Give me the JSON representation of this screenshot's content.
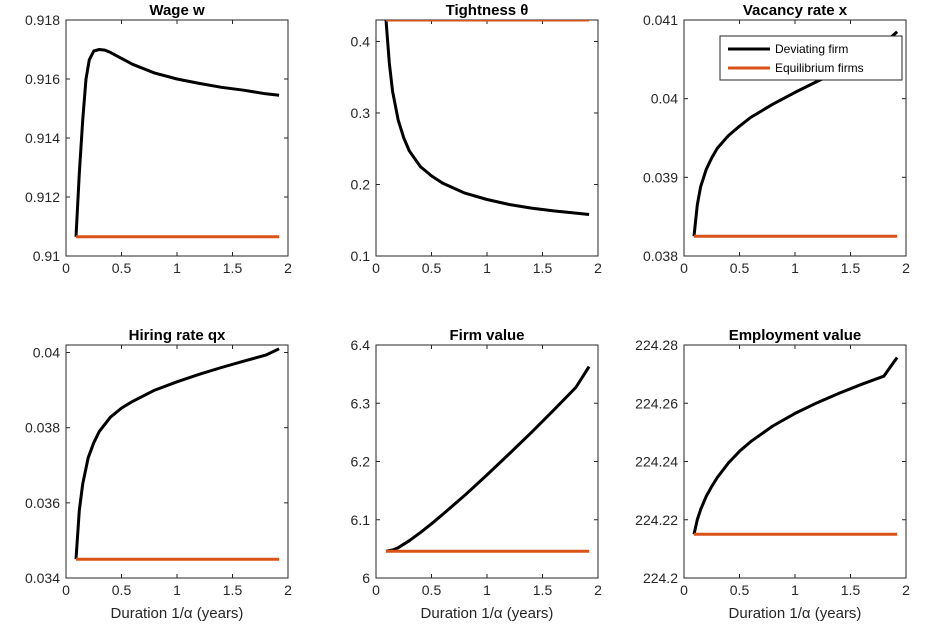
{
  "colors": {
    "deviating": "#000000",
    "equilibrium": "#D95319"
  },
  "legend": [
    "Deviating firm",
    "Equilibrium firms"
  ],
  "xlabel": "Duration 1/α (years)",
  "chart_data": [
    {
      "type": "line",
      "title": "Wage w",
      "xlabel": "",
      "xlim": [
        0,
        2
      ],
      "ylim": [
        0.91,
        0.918
      ],
      "xticks": [
        "0",
        "0.5",
        "1",
        "1.5",
        "2"
      ],
      "yticks": [
        "0.91",
        "0.912",
        "0.914",
        "0.916",
        "0.918"
      ],
      "series": [
        {
          "name": "Deviating firm",
          "color": "#000000",
          "x": [
            0.09,
            0.12,
            0.15,
            0.18,
            0.21,
            0.25,
            0.3,
            0.35,
            0.4,
            0.5,
            0.6,
            0.8,
            1.0,
            1.2,
            1.4,
            1.6,
            1.8,
            1.92
          ],
          "y": [
            0.91065,
            0.9128,
            0.9146,
            0.916,
            0.91665,
            0.91695,
            0.917,
            0.91698,
            0.9169,
            0.9167,
            0.9165,
            0.9162,
            0.916,
            0.91585,
            0.91572,
            0.91562,
            0.9155,
            0.91545
          ]
        },
        {
          "name": "Equilibrium firms",
          "color": "#D95319",
          "x": [
            0.09,
            1.92
          ],
          "y": [
            0.91065,
            0.91065
          ]
        }
      ]
    },
    {
      "type": "line",
      "title": "Tightness θ",
      "xlabel": "",
      "xlim": [
        0,
        2
      ],
      "ylim": [
        0.1,
        0.43
      ],
      "xticks": [
        "0",
        "0.5",
        "1",
        "1.5",
        "2"
      ],
      "yticks": [
        "0.1",
        "0.2",
        "0.3",
        "0.4"
      ],
      "series": [
        {
          "name": "Deviating firm",
          "color": "#000000",
          "x": [
            0.09,
            0.12,
            0.15,
            0.2,
            0.25,
            0.3,
            0.4,
            0.5,
            0.6,
            0.8,
            1.0,
            1.2,
            1.4,
            1.6,
            1.8,
            1.92
          ],
          "y": [
            0.43,
            0.37,
            0.33,
            0.29,
            0.265,
            0.247,
            0.225,
            0.212,
            0.202,
            0.188,
            0.179,
            0.172,
            0.167,
            0.163,
            0.16,
            0.158
          ]
        },
        {
          "name": "Equilibrium firms",
          "color": "#D95319",
          "x": [
            0.09,
            1.92
          ],
          "y": [
            0.43,
            0.43
          ]
        }
      ]
    },
    {
      "type": "line",
      "title": "Vacancy rate x",
      "xlabel": "",
      "xlim": [
        0,
        2
      ],
      "ylim": [
        0.038,
        0.041
      ],
      "xticks": [
        "0",
        "0.5",
        "1",
        "1.5",
        "2"
      ],
      "yticks": [
        "0.038",
        "0.039",
        "0.04",
        "0.041"
      ],
      "series": [
        {
          "name": "Deviating firm",
          "color": "#000000",
          "x": [
            0.09,
            0.12,
            0.15,
            0.2,
            0.25,
            0.3,
            0.4,
            0.5,
            0.6,
            0.8,
            1.0,
            1.2,
            1.4,
            1.6,
            1.8,
            1.92
          ],
          "y": [
            0.03825,
            0.03865,
            0.03888,
            0.0391,
            0.03925,
            0.03937,
            0.03953,
            0.03965,
            0.03976,
            0.03993,
            0.04008,
            0.04022,
            0.04035,
            0.04048,
            0.0407,
            0.04085
          ]
        },
        {
          "name": "Equilibrium firms",
          "color": "#D95319",
          "x": [
            0.09,
            1.92
          ],
          "y": [
            0.03825,
            0.03825
          ]
        }
      ]
    },
    {
      "type": "line",
      "title": "Hiring rate qx",
      "xlabel": "Duration 1/α (years)",
      "xlim": [
        0,
        2
      ],
      "ylim": [
        0.034,
        0.0402
      ],
      "xticks": [
        "0",
        "0.5",
        "1",
        "1.5",
        "2"
      ],
      "yticks": [
        "0.034",
        "0.036",
        "0.038",
        "0.04"
      ],
      "series": [
        {
          "name": "Deviating firm",
          "color": "#000000",
          "x": [
            0.09,
            0.12,
            0.15,
            0.2,
            0.25,
            0.3,
            0.4,
            0.5,
            0.6,
            0.8,
            1.0,
            1.2,
            1.4,
            1.6,
            1.8,
            1.92
          ],
          "y": [
            0.0345,
            0.0358,
            0.0365,
            0.0372,
            0.0376,
            0.0379,
            0.03828,
            0.03852,
            0.0387,
            0.039,
            0.03922,
            0.03942,
            0.0396,
            0.03977,
            0.03993,
            0.0401
          ]
        },
        {
          "name": "Equilibrium firms",
          "color": "#D95319",
          "x": [
            0.09,
            1.92
          ],
          "y": [
            0.0345,
            0.0345
          ]
        }
      ]
    },
    {
      "type": "line",
      "title": "Firm value",
      "xlabel": "Duration 1/α (years)",
      "xlim": [
        0,
        2
      ],
      "ylim": [
        6.0,
        6.4
      ],
      "xticks": [
        "0",
        "0.5",
        "1",
        "1.5",
        "2"
      ],
      "yticks": [
        "6",
        "6.1",
        "6.2",
        "6.3",
        "6.4"
      ],
      "series": [
        {
          "name": "Deviating firm",
          "color": "#000000",
          "x": [
            0.09,
            0.15,
            0.2,
            0.3,
            0.4,
            0.5,
            0.6,
            0.8,
            1.0,
            1.2,
            1.4,
            1.6,
            1.8,
            1.92
          ],
          "y": [
            6.046,
            6.048,
            6.052,
            6.064,
            6.078,
            6.093,
            6.109,
            6.142,
            6.177,
            6.213,
            6.25,
            6.288,
            6.327,
            6.363
          ]
        },
        {
          "name": "Equilibrium firms",
          "color": "#D95319",
          "x": [
            0.09,
            1.92
          ],
          "y": [
            6.046,
            6.046
          ]
        }
      ]
    },
    {
      "type": "line",
      "title": "Employment value",
      "xlabel": "Duration 1/α (years)",
      "xlim": [
        0,
        2
      ],
      "ylim": [
        224.2,
        224.28
      ],
      "xticks": [
        "0",
        "0.5",
        "1",
        "1.5",
        "2"
      ],
      "yticks": [
        "224.2",
        "224.22",
        "224.24",
        "224.26",
        "224.28"
      ],
      "series": [
        {
          "name": "Deviating firm",
          "color": "#000000",
          "x": [
            0.09,
            0.12,
            0.15,
            0.2,
            0.25,
            0.3,
            0.4,
            0.5,
            0.6,
            0.8,
            1.0,
            1.2,
            1.4,
            1.6,
            1.8,
            1.92
          ],
          "y": [
            224.215,
            224.22,
            224.2235,
            224.228,
            224.2315,
            224.2345,
            224.2395,
            224.2435,
            224.2468,
            224.2522,
            224.2565,
            224.2602,
            224.2635,
            224.2665,
            224.2693,
            224.2757
          ]
        },
        {
          "name": "Equilibrium firms",
          "color": "#D95319",
          "x": [
            0.09,
            1.92
          ],
          "y": [
            224.215,
            224.215
          ]
        }
      ]
    }
  ]
}
